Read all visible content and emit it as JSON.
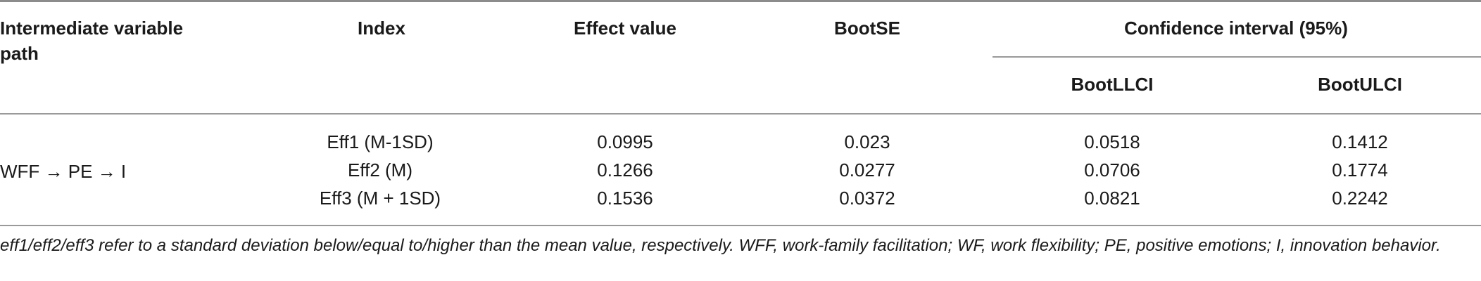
{
  "table": {
    "headers": {
      "path_line1": "Intermediate variable",
      "path_line2": "path",
      "index": "Index",
      "effect": "Effect value",
      "bootse": "BootSE",
      "ci": "Confidence interval (95%)",
      "llci": "BootLLCI",
      "ulci": "BootULCI"
    },
    "path": "WFF → PE → I",
    "rows": [
      {
        "index": "Eff1 (M-1SD)",
        "effect": "0.0995",
        "bootse": "0.023",
        "llci": "0.0518",
        "ulci": "0.1412"
      },
      {
        "index": "Eff2 (M)",
        "effect": "0.1266",
        "bootse": "0.0277",
        "llci": "0.0706",
        "ulci": "0.1774"
      },
      {
        "index": "Eff3 (M + 1SD)",
        "effect": "0.1536",
        "bootse": "0.0372",
        "llci": "0.0821",
        "ulci": "0.2242"
      }
    ],
    "note": "eff1/eff2/eff3 refer to a standard deviation below/equal to/higher than the mean value, respectively. WFF, work-family facilitation; WF, work flexibility; PE, positive emotions; I, innovation behavior."
  }
}
